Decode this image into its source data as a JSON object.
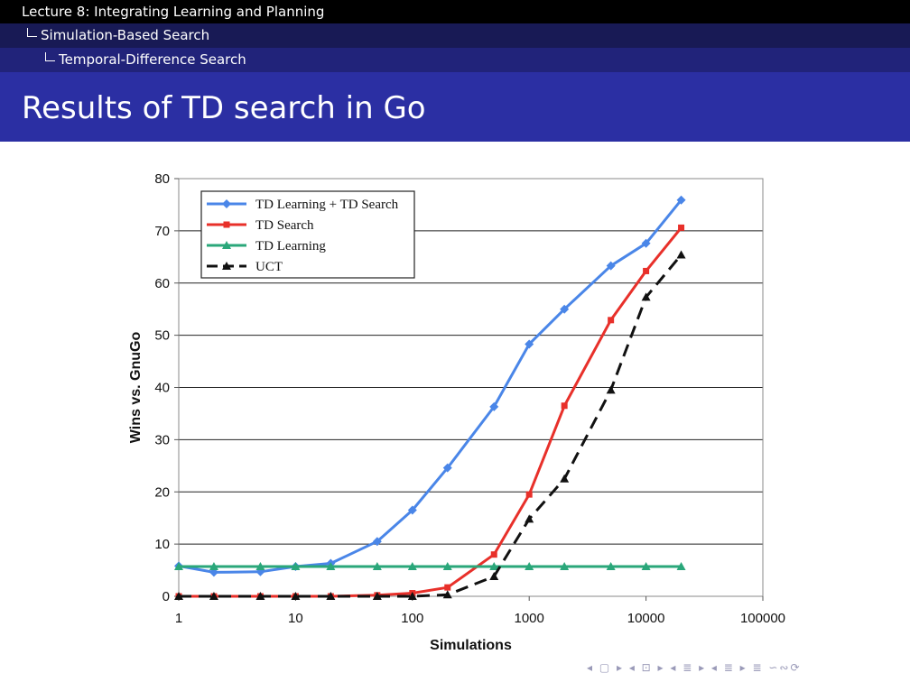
{
  "header": {
    "lecture": "Lecture 8: Integrating Learning and Planning",
    "section": "Simulation-Based Search",
    "subsection": "Temporal-Difference Search"
  },
  "slide": {
    "title": "Results of TD search in Go"
  },
  "nav_symbols": "◂ ▢ ▸ ◂ ⊡ ▸ ◂ ≣ ▸ ◂ ≣ ▸ ≣ ∽∾⟳",
  "chart_data": {
    "type": "line",
    "xscale": "log",
    "xlabel": "Simulations",
    "ylabel": "Wins vs. GnuGo",
    "xlim": [
      1,
      100000
    ],
    "ylim": [
      0,
      80
    ],
    "x_ticks": [
      1,
      10,
      100,
      1000,
      10000,
      100000
    ],
    "x_tick_labels": [
      "1",
      "10",
      "100",
      "1000",
      "10000",
      "100000"
    ],
    "y_ticks": [
      0,
      10,
      20,
      30,
      40,
      50,
      60,
      70,
      80
    ],
    "y_tick_labels": [
      "0",
      "10",
      "20",
      "30",
      "40",
      "50",
      "60",
      "70",
      "80"
    ],
    "grid": "horizontal",
    "legend_position": "top-left",
    "x": [
      1,
      2,
      5,
      10,
      20,
      50,
      100,
      200,
      500,
      1000,
      2000,
      5000,
      10000,
      20000
    ],
    "series": [
      {
        "name": "TD Learning + TD Search",
        "color": "#4a86e8",
        "marker": "diamond",
        "dash": "solid",
        "values": [
          5.8,
          4.6,
          4.7,
          5.7,
          6.3,
          10.5,
          16.5,
          24.6,
          36.3,
          48.3,
          55.0,
          63.3,
          67.6,
          75.9
        ]
      },
      {
        "name": "TD Search",
        "color": "#e8302a",
        "marker": "square",
        "dash": "solid",
        "values": [
          0,
          0,
          0,
          0,
          0,
          0.2,
          0.6,
          1.7,
          8.0,
          19.5,
          36.5,
          52.9,
          62.3,
          70.6
        ]
      },
      {
        "name": "TD Learning",
        "color": "#2aa77a",
        "marker": "triangle",
        "dash": "solid",
        "values": [
          5.7,
          5.7,
          5.7,
          5.7,
          5.7,
          5.7,
          5.7,
          5.7,
          5.7,
          5.7,
          5.7,
          5.7,
          5.7,
          5.7
        ]
      },
      {
        "name": "UCT",
        "color": "#111111",
        "marker": "triangle",
        "dash": "dashed",
        "values": [
          0,
          0,
          0,
          0,
          0,
          0,
          0,
          0.3,
          3.8,
          14.8,
          22.5,
          39.5,
          57.3,
          65.4
        ]
      }
    ]
  }
}
